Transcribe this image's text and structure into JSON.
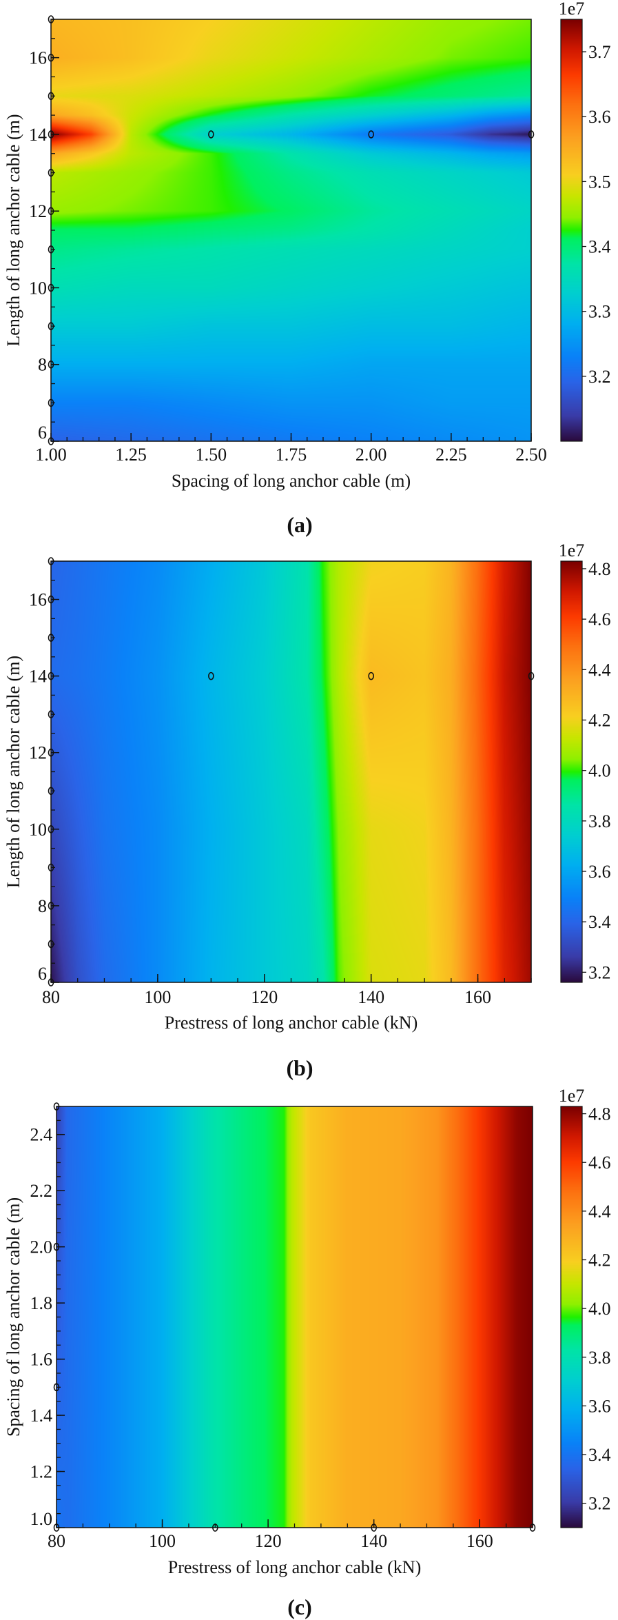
{
  "colormap": [
    "#2a0a3c",
    "#3a3ca8",
    "#2a64e8",
    "#0a82f8",
    "#00b0f0",
    "#00cfd0",
    "#00e4a8",
    "#00f060",
    "#20f000",
    "#90f000",
    "#c8e600",
    "#f8d020",
    "#fca020",
    "#fc7010",
    "#fc3a00",
    "#d01800",
    "#7a0000"
  ],
  "colormap_positions": [
    0,
    0.06,
    0.14,
    0.2,
    0.28,
    0.35,
    0.42,
    0.48,
    0.5,
    0.53,
    0.58,
    0.63,
    0.72,
    0.8,
    0.87,
    0.93,
    1.0
  ],
  "chart_data": [
    {
      "type": "heatmap",
      "caption": "(a)",
      "xlabel": "Spacing of long anchor cable (m)",
      "ylabel": "Length of long anchor cable (m)",
      "xlim": [
        1.0,
        2.5
      ],
      "ylim": [
        6,
        17
      ],
      "x_ticks": [
        "1.00",
        "1.25",
        "1.50",
        "1.75",
        "2.00",
        "2.25",
        "2.50"
      ],
      "x_minor_step": 0.05,
      "y_ticks": [
        "6",
        "8",
        "10",
        "12",
        "14",
        "16"
      ],
      "y_minor_step": 0.5,
      "colorbar": {
        "multiplier": "1e7",
        "range": [
          3.1,
          3.75
        ],
        "ticks": [
          "3.2",
          "3.3",
          "3.4",
          "3.5",
          "3.6",
          "3.7"
        ]
      },
      "grid_x": [
        1.0,
        1.125,
        1.25,
        1.5,
        1.75,
        2.0,
        2.25,
        2.375,
        2.5
      ],
      "grid_y": [
        6,
        7,
        8,
        9,
        10,
        11,
        11.5,
        12,
        13,
        13.5,
        14,
        14.5,
        15,
        16,
        17
      ],
      "values": [
        [
          3.19,
          3.195,
          3.2,
          3.21,
          3.22,
          3.23,
          3.24,
          3.245,
          3.25
        ],
        [
          3.23,
          3.23,
          3.23,
          3.24,
          3.25,
          3.25,
          3.26,
          3.26,
          3.26
        ],
        [
          3.28,
          3.28,
          3.28,
          3.28,
          3.28,
          3.27,
          3.27,
          3.27,
          3.27
        ],
        [
          3.32,
          3.32,
          3.32,
          3.31,
          3.31,
          3.3,
          3.3,
          3.295,
          3.29
        ],
        [
          3.36,
          3.355,
          3.35,
          3.35,
          3.34,
          3.33,
          3.32,
          3.315,
          3.31
        ],
        [
          3.39,
          3.385,
          3.38,
          3.37,
          3.36,
          3.35,
          3.34,
          3.335,
          3.33
        ],
        [
          3.41,
          3.41,
          3.41,
          3.4,
          3.39,
          3.37,
          3.35,
          3.34,
          3.33
        ],
        [
          3.45,
          3.445,
          3.44,
          3.43,
          3.41,
          3.38,
          3.36,
          3.35,
          3.34
        ],
        [
          3.47,
          3.46,
          3.45,
          3.43,
          3.39,
          3.36,
          3.34,
          3.33,
          3.32
        ],
        [
          3.56,
          3.52,
          3.47,
          3.43,
          3.37,
          3.32,
          3.29,
          3.27,
          3.26
        ],
        [
          3.75,
          3.66,
          3.47,
          3.33,
          3.29,
          3.22,
          3.18,
          3.13,
          3.11
        ],
        [
          3.56,
          3.53,
          3.48,
          3.42,
          3.37,
          3.33,
          3.29,
          3.26,
          3.24
        ],
        [
          3.5,
          3.495,
          3.49,
          3.47,
          3.45,
          3.42,
          3.4,
          3.39,
          3.38
        ],
        [
          3.55,
          3.54,
          3.53,
          3.5,
          3.48,
          3.46,
          3.44,
          3.435,
          3.43
        ],
        [
          3.54,
          3.535,
          3.53,
          3.51,
          3.49,
          3.47,
          3.45,
          3.445,
          3.44
        ]
      ],
      "sample_points": [
        [
          1.5,
          14
        ],
        [
          2.0,
          14
        ],
        [
          2.5,
          14
        ],
        [
          1.0,
          6
        ],
        [
          1.0,
          7
        ],
        [
          1.0,
          8
        ],
        [
          1.0,
          9
        ],
        [
          1.0,
          10
        ],
        [
          1.0,
          11
        ],
        [
          1.0,
          12
        ],
        [
          1.0,
          13
        ],
        [
          1.0,
          14
        ],
        [
          1.0,
          15
        ],
        [
          1.0,
          16
        ],
        [
          1.0,
          17
        ]
      ]
    },
    {
      "type": "heatmap",
      "caption": "(b)",
      "xlabel": "Prestress of long anchor cable (kN)",
      "ylabel": "Length of long anchor cable (m)",
      "xlim": [
        80,
        170
      ],
      "ylim": [
        6,
        17
      ],
      "x_ticks": [
        "80",
        "100",
        "120",
        "140",
        "160"
      ],
      "x_minor_step": 5,
      "y_ticks": [
        "6",
        "8",
        "10",
        "12",
        "14",
        "16"
      ],
      "y_minor_step": 0.5,
      "colorbar": {
        "multiplier": "1e7",
        "range": [
          3.16,
          4.83
        ],
        "ticks": [
          "3.2",
          "3.4",
          "3.6",
          "3.8",
          "4.0",
          "4.2",
          "4.4",
          "4.6",
          "4.8"
        ]
      },
      "grid_x": [
        80,
        85,
        90,
        100,
        110,
        120,
        128,
        131,
        134,
        140,
        150,
        155,
        160,
        165,
        170
      ],
      "grid_y": [
        6,
        10,
        14,
        17
      ],
      "values": [
        [
          3.18,
          3.33,
          3.42,
          3.52,
          3.64,
          3.72,
          3.78,
          3.85,
          4.02,
          4.16,
          4.18,
          4.28,
          4.5,
          4.68,
          4.78
        ],
        [
          3.3,
          3.38,
          3.45,
          3.52,
          3.63,
          3.72,
          3.8,
          3.92,
          4.05,
          4.18,
          4.2,
          4.3,
          4.5,
          4.7,
          4.8
        ],
        [
          3.42,
          3.44,
          3.47,
          3.54,
          3.65,
          3.74,
          3.86,
          3.98,
          4.1,
          4.28,
          4.25,
          4.32,
          4.52,
          4.72,
          4.82
        ],
        [
          3.4,
          3.43,
          3.46,
          3.52,
          3.62,
          3.72,
          3.85,
          4.0,
          4.1,
          4.2,
          4.22,
          4.3,
          4.5,
          4.7,
          4.82
        ]
      ],
      "sample_points": [
        [
          110,
          14
        ],
        [
          140,
          14
        ],
        [
          170,
          14
        ],
        [
          80,
          6
        ],
        [
          80,
          7
        ],
        [
          80,
          8
        ],
        [
          80,
          9
        ],
        [
          80,
          10
        ],
        [
          80,
          11
        ],
        [
          80,
          12
        ],
        [
          80,
          13
        ],
        [
          80,
          14
        ],
        [
          80,
          15
        ],
        [
          80,
          16
        ],
        [
          80,
          17
        ]
      ]
    },
    {
      "type": "heatmap",
      "caption": "(c)",
      "xlabel": "Prestress of long anchor cable (kN)",
      "ylabel": "Spacing of long anchor cable (m)",
      "xlim": [
        80,
        170
      ],
      "ylim": [
        1.0,
        2.5
      ],
      "x_ticks": [
        "80",
        "100",
        "120",
        "140",
        "160"
      ],
      "x_minor_step": 5,
      "y_ticks": [
        "1.0",
        "1.2",
        "1.4",
        "1.6",
        "1.8",
        "2.0",
        "2.2",
        "2.4"
      ],
      "y_minor_step": 0.05,
      "colorbar": {
        "multiplier": "1e7",
        "range": [
          3.1,
          4.83
        ],
        "ticks": [
          "3.2",
          "3.4",
          "3.6",
          "3.8",
          "4.0",
          "4.2",
          "4.4",
          "4.6",
          "4.8"
        ]
      },
      "grid_x": [
        80,
        82,
        90,
        100,
        110,
        118,
        123,
        124.5,
        128,
        135,
        145,
        152,
        158,
        163,
        167,
        170
      ],
      "grid_y": [
        1.0,
        2.5
      ],
      "values": [
        [
          3.4,
          3.38,
          3.46,
          3.58,
          3.82,
          3.92,
          3.96,
          4.08,
          4.22,
          4.3,
          4.32,
          4.38,
          4.55,
          4.7,
          4.8,
          4.83
        ],
        [
          3.22,
          3.36,
          3.46,
          3.58,
          3.82,
          3.92,
          3.96,
          4.08,
          4.22,
          4.3,
          4.32,
          4.38,
          4.55,
          4.7,
          4.8,
          4.83
        ]
      ],
      "sample_points": [
        [
          110,
          1.0
        ],
        [
          140,
          1.0
        ],
        [
          170,
          1.0
        ],
        [
          80,
          1.0
        ],
        [
          80,
          1.5
        ],
        [
          80,
          2.0
        ],
        [
          80,
          2.5
        ]
      ]
    }
  ]
}
